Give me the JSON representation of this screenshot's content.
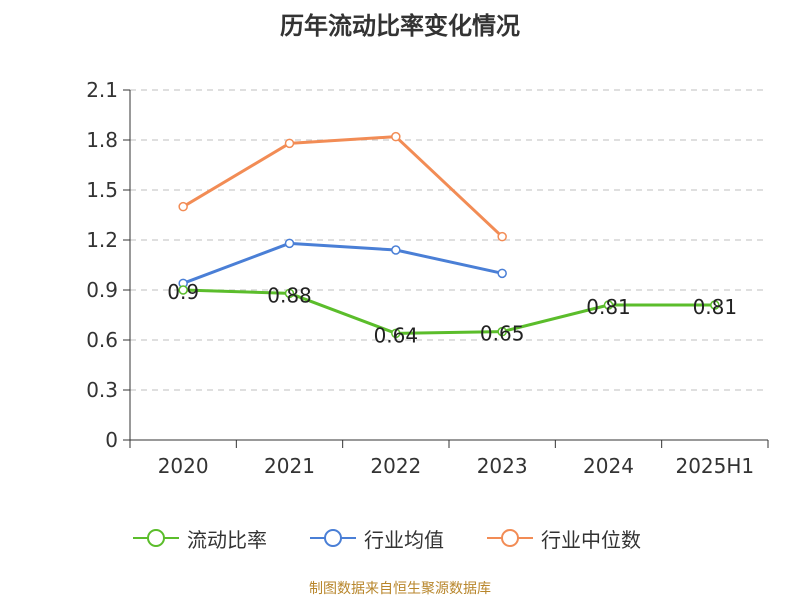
{
  "title": "历年流动比率变化情况",
  "source": "制图数据来自恒生聚源数据库",
  "chart_data": {
    "type": "line",
    "categories": [
      "2020",
      "2021",
      "2022",
      "2023",
      "2024",
      "2025H1"
    ],
    "ylim": [
      0,
      2.1
    ],
    "yticks": [
      "0",
      "0.3",
      "0.6",
      "0.9",
      "1.2",
      "1.5",
      "1.8",
      "2.1"
    ],
    "grid": true,
    "legend_position": "bottom",
    "series": [
      {
        "name": "流动比率",
        "color": "#5bbd2b",
        "values": [
          0.9,
          0.88,
          0.64,
          0.65,
          0.81,
          0.81
        ],
        "labels": [
          "0.9",
          "0.88",
          "0.64",
          "0.65",
          "0.81",
          "0.81"
        ]
      },
      {
        "name": "行业均值",
        "color": "#4a7fd6",
        "values": [
          0.94,
          1.18,
          1.14,
          1.0,
          null,
          null
        ]
      },
      {
        "name": "行业中位数",
        "color": "#f28c55",
        "values": [
          1.4,
          1.78,
          1.82,
          1.22,
          null,
          null
        ]
      }
    ]
  }
}
